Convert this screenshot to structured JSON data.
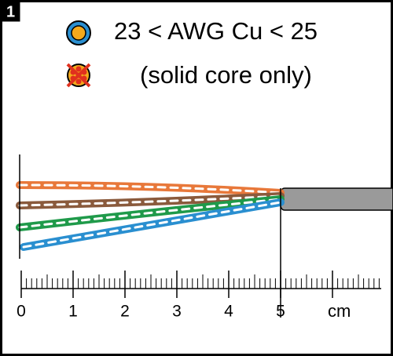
{
  "badge": "1",
  "spec": {
    "line1": "23 < AWG Cu < 25",
    "line2": "(solid core only)"
  },
  "ruler": {
    "labels": [
      "0",
      "1",
      "2",
      "3",
      "4",
      "5"
    ],
    "unit": "cm"
  }
}
